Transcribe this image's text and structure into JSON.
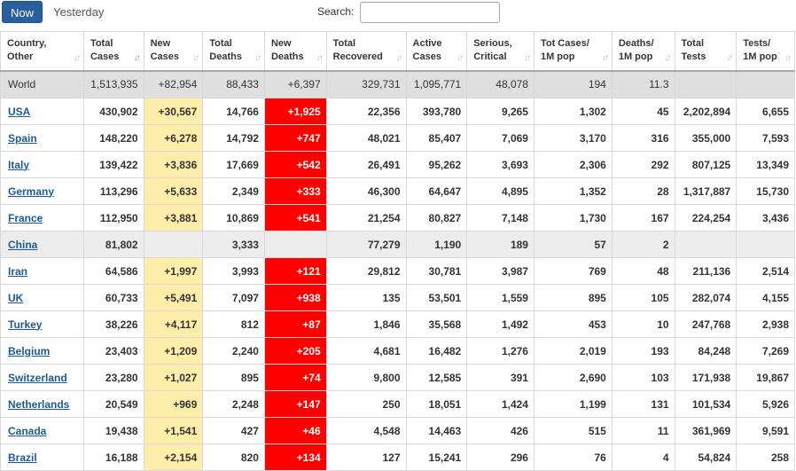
{
  "tabs": {
    "now": "Now",
    "yesterday": "Yesterday"
  },
  "search": {
    "label": "Search:",
    "value": ""
  },
  "columns": [
    [
      "Country,",
      "Other"
    ],
    [
      "Total",
      "Cases"
    ],
    [
      "New",
      "Cases"
    ],
    [
      "Total",
      "Deaths"
    ],
    [
      "New",
      "Deaths"
    ],
    [
      "Total",
      "Recovered"
    ],
    [
      "Active",
      "Cases"
    ],
    [
      "Serious,",
      "Critical"
    ],
    [
      "Tot Cases/",
      "1M pop"
    ],
    [
      "Deaths/",
      "1M pop"
    ],
    [
      "Total",
      "Tests"
    ],
    [
      "Tests/",
      "1M pop"
    ]
  ],
  "colors": {
    "new_cases_highlight": "#ffeeaa",
    "new_deaths_highlight": "#ff0000",
    "tab_active": "#2a5f9e",
    "link": "#1f5b93"
  },
  "rows": [
    {
      "type": "world",
      "cells": [
        "World",
        "1,513,935",
        "+82,954",
        "88,433",
        "+6,397",
        "329,731",
        "1,095,771",
        "48,078",
        "194",
        "11.3",
        "",
        ""
      ]
    },
    {
      "type": "country",
      "cells": [
        "USA",
        "430,902",
        "+30,567",
        "14,766",
        "+1,925",
        "22,356",
        "393,780",
        "9,265",
        "1,302",
        "45",
        "2,202,894",
        "6,655"
      ]
    },
    {
      "type": "country",
      "cells": [
        "Spain",
        "148,220",
        "+6,278",
        "14,792",
        "+747",
        "48,021",
        "85,407",
        "7,069",
        "3,170",
        "316",
        "355,000",
        "7,593"
      ]
    },
    {
      "type": "country",
      "cells": [
        "Italy",
        "139,422",
        "+3,836",
        "17,669",
        "+542",
        "26,491",
        "95,262",
        "3,693",
        "2,306",
        "292",
        "807,125",
        "13,349"
      ]
    },
    {
      "type": "country",
      "cells": [
        "Germany",
        "113,296",
        "+5,633",
        "2,349",
        "+333",
        "46,300",
        "64,647",
        "4,895",
        "1,352",
        "28",
        "1,317,887",
        "15,730"
      ]
    },
    {
      "type": "country",
      "cells": [
        "France",
        "112,950",
        "+3,881",
        "10,869",
        "+541",
        "21,254",
        "80,827",
        "7,148",
        "1,730",
        "167",
        "224,254",
        "3,436"
      ]
    },
    {
      "type": "china",
      "cells": [
        "China",
        "81,802",
        "",
        "3,333",
        "",
        "77,279",
        "1,190",
        "189",
        "57",
        "2",
        "",
        ""
      ]
    },
    {
      "type": "country",
      "cells": [
        "Iran",
        "64,586",
        "+1,997",
        "3,993",
        "+121",
        "29,812",
        "30,781",
        "3,987",
        "769",
        "48",
        "211,136",
        "2,514"
      ]
    },
    {
      "type": "country",
      "cells": [
        "UK",
        "60,733",
        "+5,491",
        "7,097",
        "+938",
        "135",
        "53,501",
        "1,559",
        "895",
        "105",
        "282,074",
        "4,155"
      ]
    },
    {
      "type": "country",
      "cells": [
        "Turkey",
        "38,226",
        "+4,117",
        "812",
        "+87",
        "1,846",
        "35,568",
        "1,492",
        "453",
        "10",
        "247,768",
        "2,938"
      ]
    },
    {
      "type": "country",
      "cells": [
        "Belgium",
        "23,403",
        "+1,209",
        "2,240",
        "+205",
        "4,681",
        "16,482",
        "1,276",
        "2,019",
        "193",
        "84,248",
        "7,269"
      ]
    },
    {
      "type": "country",
      "cells": [
        "Switzerland",
        "23,280",
        "+1,027",
        "895",
        "+74",
        "9,800",
        "12,585",
        "391",
        "2,690",
        "103",
        "171,938",
        "19,867"
      ]
    },
    {
      "type": "country",
      "cells": [
        "Netherlands",
        "20,549",
        "+969",
        "2,248",
        "+147",
        "250",
        "18,051",
        "1,424",
        "1,199",
        "131",
        "101,534",
        "5,926"
      ]
    },
    {
      "type": "country",
      "cells": [
        "Canada",
        "19,438",
        "+1,541",
        "427",
        "+46",
        "4,548",
        "14,463",
        "426",
        "515",
        "11",
        "361,969",
        "9,591"
      ]
    },
    {
      "type": "country",
      "cells": [
        "Brazil",
        "16,188",
        "+2,154",
        "820",
        "+134",
        "127",
        "15,241",
        "296",
        "76",
        "4",
        "54,824",
        "258"
      ]
    }
  ]
}
